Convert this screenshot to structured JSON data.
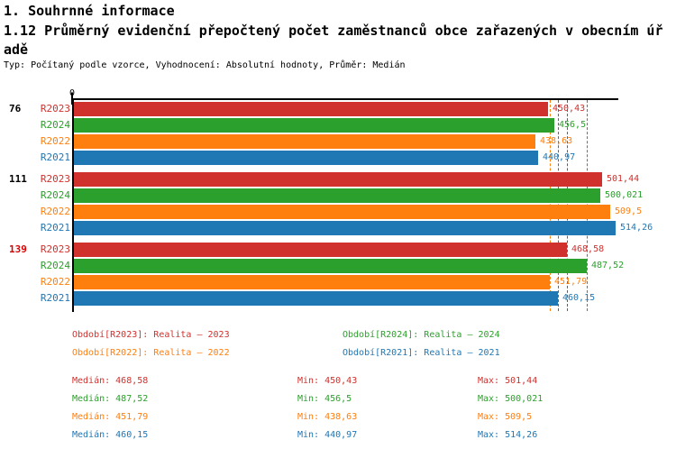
{
  "header": {
    "section_title": "1. Souhrnné informace",
    "chart_title": "1.12 Průměrný evidenční přepočtený počet zaměstnanců obce zařazených v obecním úřadě",
    "meta_line": "Typ: Počítaný podle vzorce, Vyhodnocení: Absolutní hodnoty, Průměr: Medián"
  },
  "chart_data": {
    "type": "bar",
    "orientation": "horizontal",
    "origin_tick_label": "0",
    "xlim": [
      0,
      518
    ],
    "grid": false,
    "series": [
      {
        "id": "R2023",
        "name": "Realita – 2023",
        "color": "#d0312d"
      },
      {
        "id": "R2024",
        "name": "Realita – 2024",
        "color": "#2ca02c"
      },
      {
        "id": "R2022",
        "name": "Realita – 2022",
        "color": "#ff7f0e"
      },
      {
        "id": "R2021",
        "name": "Realita – 2021",
        "color": "#1f77b4"
      }
    ],
    "groups": [
      {
        "label": "76",
        "label_color": "#000000",
        "values": [
          450.43,
          456.5,
          438.63,
          440.97
        ],
        "value_labels": [
          "450,43",
          "456,5",
          "438,63",
          "440,97"
        ]
      },
      {
        "label": "111",
        "label_color": "#000000",
        "values": [
          501.44,
          500.021,
          509.5,
          514.26
        ],
        "value_labels": [
          "501,44",
          "500,021",
          "509,5",
          "514,26"
        ]
      },
      {
        "label": "139",
        "label_color": "#dd0000",
        "values": [
          468.58,
          487.52,
          451.79,
          460.15
        ],
        "value_labels": [
          "468,58",
          "487,52",
          "451,79",
          "460,15"
        ]
      }
    ],
    "median_lines": [
      {
        "series": "R2023",
        "value": 468.58
      },
      {
        "series": "R2024",
        "value": 487.52
      },
      {
        "series": "R2022",
        "value": 451.79
      },
      {
        "series": "R2021",
        "value": 460.15
      }
    ]
  },
  "legend": {
    "items": [
      {
        "label": "Období[R2023]: Realita – 2023",
        "color": "#d0312d"
      },
      {
        "label": "Období[R2024]: Realita – 2024",
        "color": "#2ca02c"
      },
      {
        "label": "Období[R2022]: Realita – 2022",
        "color": "#ff7f0e"
      },
      {
        "label": "Období[R2021]: Realita – 2021",
        "color": "#1f77b4"
      }
    ]
  },
  "stats": {
    "labels": {
      "median": "Medián",
      "min": "Min",
      "max": "Max"
    },
    "rows": [
      {
        "color": "#d0312d",
        "median": "468,58",
        "min": "450,43",
        "max": "501,44"
      },
      {
        "color": "#2ca02c",
        "median": "487,52",
        "min": "456,5",
        "max": "500,021"
      },
      {
        "color": "#ff7f0e",
        "median": "451,79",
        "min": "438,63",
        "max": "509,5"
      },
      {
        "color": "#1f77b4",
        "median": "460,15",
        "min": "440,97",
        "max": "514,26"
      }
    ]
  }
}
